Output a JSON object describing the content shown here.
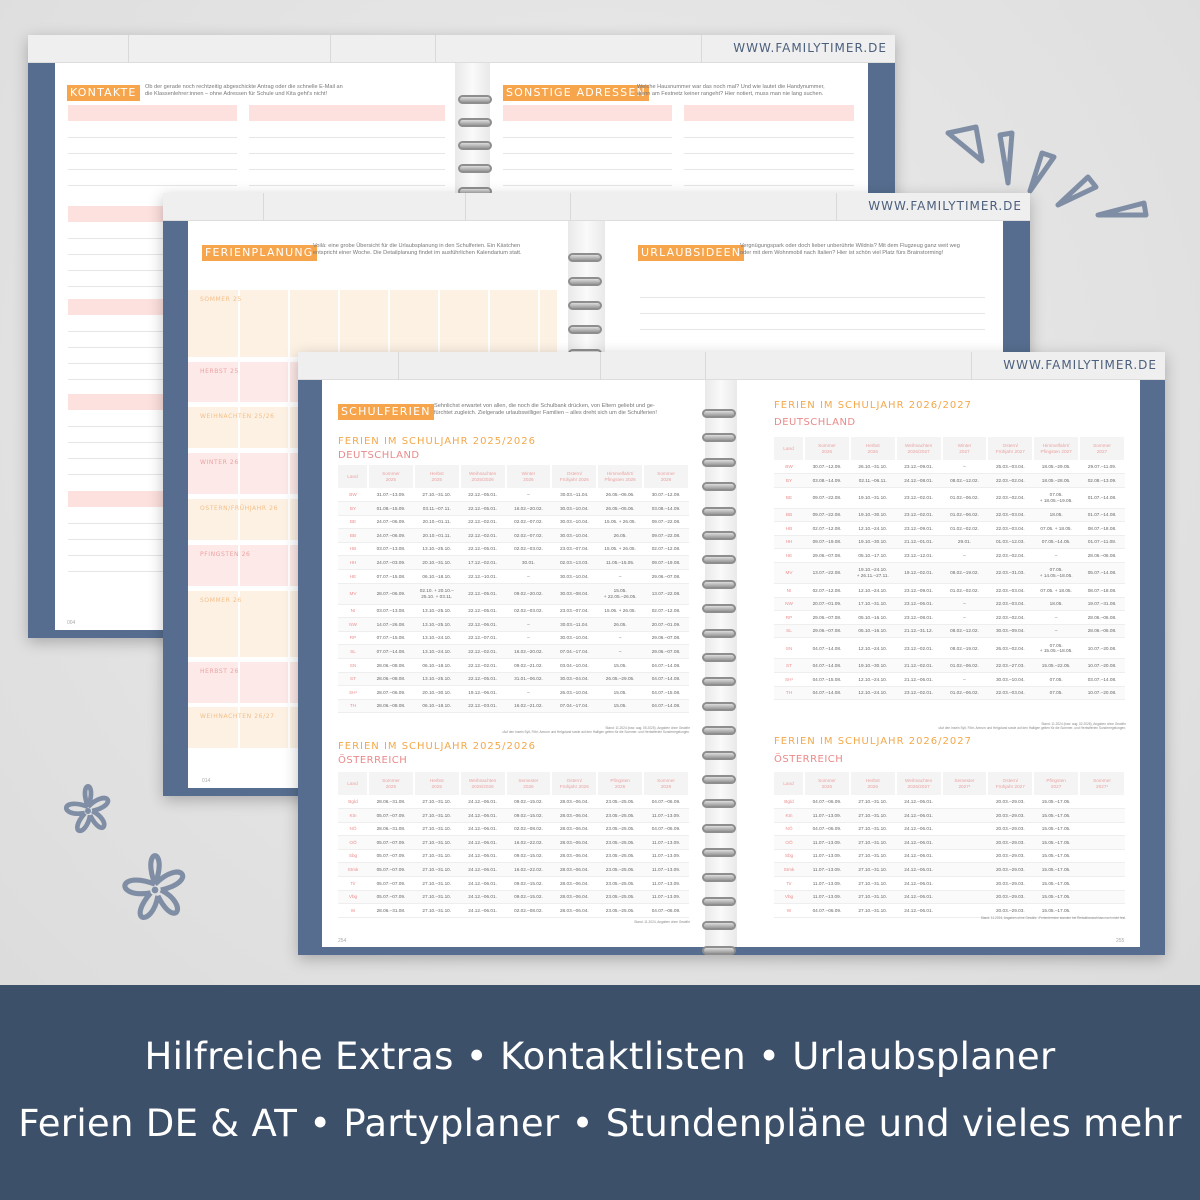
{
  "brand_url": "WWW.FAMILYTIMER.DE",
  "colors": {
    "cover": "#566d8f",
    "accent_orange": "#f6a54c",
    "accent_pink": "#e98a8a",
    "band": "#3d5069"
  },
  "book_kontakte": {
    "left": {
      "heading": "KONTAKTE",
      "description": "Ob der gerade noch rechtzeitig abgeschickte Antrag oder die schnelle E-Mail an\ndie Klassenlehrer:innen – ohne Adressen für Schule und Kita geht's nicht!",
      "page_number": "004"
    },
    "right": {
      "heading": "SONSTIGE ADRESSEN",
      "description": "Welche Hausnummer war das noch mal? Und wie lautet die Handynummer,\nwenn am Festnetz keiner rangeht? Hier notiert, muss man nie lang suchen."
    }
  },
  "book_ferienplanung": {
    "left": {
      "heading": "FERIENPLANUNG",
      "description": "Voilà: eine grobe Übersicht für die Urlaubsplanung in den Schulferien. Ein Kästchen\nentspricht einer Woche. Die Detailplanung findet im ausführlichen Kalendarium statt.",
      "page_number": "014",
      "rows": [
        "SOMMER 25",
        "HERBST 25",
        "WEIHNACHTEN 25/26",
        "WINTER 26",
        "OSTERN/FRÜHJAHR 26",
        "PFINGSTEN 26",
        "SOMMER 26",
        "HERBST 26",
        "WEIHNACHTEN 26/27"
      ]
    },
    "right": {
      "heading": "URLAUBSIDEEN",
      "description": "Vergnügungspark oder doch lieber unberührte Wildnis? Mit dem Flugzeug ganz weit weg\noder mit dem Wohnmobil nach Italien? Hier ist schön viel Platz fürs Brainstorming!"
    }
  },
  "book_schulferien": {
    "heading": "SCHULFERIEN",
    "description": "Sehnlichst erwartet von allen, die noch die Schulbank drücken, von Eltern geliebt und ge-\nfürchtet zugleich. Zielgerade urlaubswilliger Familien – alles dreht sich um die Schulferien!",
    "page_left": "254",
    "page_right": "255",
    "tables": [
      {
        "title": "FERIEN IM SCHULJAHR 2025/2026",
        "subtitle": "DEUTSCHLAND",
        "headers": [
          "Land",
          "Sommer\n2025",
          "Herbst\n2025",
          "Weihnachten\n2025/2026",
          "Winter\n2026",
          "Ostern/\nFrühjahr 2026",
          "Himmelfahrt/\nPfingsten 2026",
          "Sommer\n2026"
        ],
        "rows": [
          [
            "BW",
            "31.07.–13.09.",
            "27.10.–31.10.",
            "22.12.–05.01.",
            "–",
            "30.03.–11.04.",
            "26.05.–06.06.",
            "30.07.–12.09."
          ],
          [
            "BY",
            "01.08.–15.09.",
            "03.11.–07.11.",
            "22.12.–05.01.",
            "16.02.–20.02.",
            "30.03.–10.04.",
            "26.05.–05.06.",
            "03.08.–14.09."
          ],
          [
            "BE",
            "24.07.–06.09.",
            "20.10.–01.11.",
            "22.12.–02.01.",
            "02.02.–07.02.",
            "30.03.–10.04.",
            "15.05. + 26.05.",
            "09.07.–22.08."
          ],
          [
            "BB",
            "24.07.–06.09.",
            "20.10.–01.11.",
            "22.12.–02.01.",
            "02.02.–07.02.",
            "30.03.–10.04.",
            "26.05.",
            "09.07.–22.08."
          ],
          [
            "HB",
            "03.07.–13.08.",
            "13.10.–25.10.",
            "22.12.–05.01.",
            "02.02.–03.02.",
            "23.03.–07.04.",
            "15.05. + 26.05.",
            "02.07.–12.08."
          ],
          [
            "HH",
            "24.07.–03.09.",
            "20.10.–31.10.",
            "17.12.–02.01.",
            "30.01.",
            "02.03.–13.03.",
            "11.05.–15.05.",
            "09.07.–19.08."
          ],
          [
            "HE",
            "07.07.–15.08.",
            "06.10.–18.10.",
            "22.12.–10.01.",
            "–",
            "30.03.–10.04.",
            "–",
            "29.06.–07.08."
          ],
          [
            "MV",
            "28.07.–06.09.",
            "02.10. + 20.10.–\n25.10. + 03.11.",
            "22.12.–05.01.",
            "09.02.–20.02.",
            "30.03.–08.04.",
            "15.05.\n+ 22.05.–26.05.",
            "13.07.–22.08."
          ],
          [
            "NI",
            "03.07.–13.08.",
            "13.10.–25.10.",
            "22.12.–05.01.",
            "02.02.–03.02.",
            "23.03.–07.04.",
            "15.05. + 26.05.",
            "02.07.–12.08."
          ],
          [
            "NW",
            "14.07.–26.08.",
            "13.10.–25.10.",
            "22.12.–06.01.",
            "–",
            "30.03.–11.04.",
            "26.05.",
            "20.07.–01.09."
          ],
          [
            "RP",
            "07.07.–15.08.",
            "13.10.–24.10.",
            "22.12.–07.01.",
            "–",
            "30.03.–10.04.",
            "–",
            "29.06.–07.08."
          ],
          [
            "SL",
            "07.07.–14.08.",
            "13.10.–24.10.",
            "22.12.–02.01.",
            "16.02.–20.02.",
            "07.04.–17.04.",
            "–",
            "29.06.–07.08."
          ],
          [
            "SN",
            "28.06.–08.08.",
            "06.10.–18.10.",
            "22.12.–02.01.",
            "09.02.–21.02.",
            "03.04.–10.04.",
            "15.05.",
            "04.07.–14.08."
          ],
          [
            "ST",
            "28.06.–08.08.",
            "13.10.–25.10.",
            "22.12.–05.01.",
            "31.01.–06.02.",
            "30.03.–04.04.",
            "26.05.–29.05.",
            "04.07.–14.08."
          ],
          [
            "SH¹",
            "28.07.–06.09.",
            "20.10.–30.10.",
            "19.12.–06.01.",
            "–",
            "26.03.–10.04.",
            "15.05.",
            "04.07.–15.08."
          ],
          [
            "TH",
            "28.06.–08.08.",
            "06.10.–18.10.",
            "22.12.–03.01.",
            "16.02.–21.02.",
            "07.04.–17.04.",
            "15.05.",
            "04.07.–14.08."
          ]
        ],
        "note": "Stand: 11.2024 (bzw. aug. 05.2025), Angaben ohne Gewähr\n¹Auf den Inseln Sylt, Föhr, Amrum und Helgoland sowie auf den Halligen gelten für die Sommer- und Herbstferien Sonderregelungen."
      },
      {
        "title": "FERIEN IM SCHULJAHR 2025/2026",
        "subtitle": "ÖSTERREICH",
        "headers": [
          "Land",
          "Sommer\n2025",
          "Herbst\n2025",
          "Weihnachten\n2025/2026",
          "Semester\n2026",
          "Ostern/\nFrühjahr 2026",
          "Pfingsten\n2026",
          "Sommer\n2026"
        ],
        "rows": [
          [
            "Bgld",
            "28.06.–31.08.",
            "27.10.–31.10.",
            "24.12.–06.01.",
            "09.02.–15.02.",
            "28.03.–06.04.",
            "23.05.–25.05.",
            "04.07.–06.09."
          ],
          [
            "Ktn",
            "05.07.–07.09.",
            "27.10.–31.10.",
            "24.12.–06.01.",
            "09.02.–15.02.",
            "28.03.–06.04.",
            "23.05.–25.05.",
            "11.07.–13.09."
          ],
          [
            "NÖ",
            "28.06.–31.08.",
            "27.10.–31.10.",
            "24.12.–06.01.",
            "02.02.–08.02.",
            "28.03.–06.04.",
            "23.05.–25.05.",
            "04.07.–06.09."
          ],
          [
            "OÖ",
            "05.07.–07.09.",
            "27.10.–31.10.",
            "24.12.–06.01.",
            "16.02.–22.02.",
            "28.03.–06.04.",
            "23.05.–25.05.",
            "11.07.–13.09."
          ],
          [
            "Sbg",
            "05.07.–07.09.",
            "27.10.–31.10.",
            "24.12.–06.01.",
            "09.02.–15.02.",
            "28.03.–06.04.",
            "23.05.–25.05.",
            "11.07.–13.09."
          ],
          [
            "Stmk",
            "05.07.–07.09.",
            "27.10.–31.10.",
            "24.12.–06.01.",
            "16.02.–22.02.",
            "28.03.–06.04.",
            "23.05.–25.05.",
            "11.07.–13.09."
          ],
          [
            "Tir",
            "05.07.–07.09.",
            "27.10.–31.10.",
            "24.12.–06.01.",
            "09.02.–15.02.",
            "28.03.–06.04.",
            "23.05.–25.05.",
            "11.07.–13.09."
          ],
          [
            "Vbg",
            "05.07.–07.09.",
            "27.10.–31.10.",
            "24.12.–06.01.",
            "09.02.–15.02.",
            "28.03.–06.04.",
            "23.05.–25.05.",
            "11.07.–13.09."
          ],
          [
            "W",
            "28.06.–31.08.",
            "27.10.–31.10.",
            "24.12.–06.01.",
            "02.02.–08.02.",
            "28.03.–06.04.",
            "23.05.–25.05.",
            "04.07.–06.09."
          ]
        ],
        "note": "Stand: 11.2024, Angaben ohne Gewähr"
      },
      {
        "title": "FERIEN IM SCHULJAHR 2026/2027",
        "subtitle": "DEUTSCHLAND",
        "headers": [
          "Land",
          "Sommer\n2026",
          "Herbst\n2026",
          "Weihnachten\n2026/2027",
          "Winter\n2027",
          "Ostern/\nFrühjahr 2027",
          "Himmelfahrt/\nPfingsten 2027",
          "Sommer\n2027"
        ],
        "rows": [
          [
            "BW",
            "30.07.–12.09.",
            "26.10.–31.10.",
            "23.12.–09.01.",
            "–",
            "25.03.–03.04.",
            "18.05.–29.05.",
            "29.07.–11.09."
          ],
          [
            "BY",
            "03.08.–14.09.",
            "02.11.–06.11.",
            "24.12.–08.01.",
            "08.02.–12.02.",
            "22.03.–02.04.",
            "18.05.–28.05.",
            "02.08.–13.09."
          ],
          [
            "BE",
            "09.07.–22.08.",
            "19.10.–31.10.",
            "23.12.–02.01.",
            "01.02.–06.02.",
            "22.03.–02.04.",
            "07.05.\n+ 18.05.–19.05.",
            "01.07.–14.08."
          ],
          [
            "BB",
            "09.07.–22.08.",
            "19.10.–30.10.",
            "23.12.–02.01.",
            "01.02.–06.02.",
            "22.03.–03.04.",
            "18.05.",
            "01.07.–14.08."
          ],
          [
            "HB",
            "02.07.–12.08.",
            "12.10.–24.10.",
            "23.12.–09.01.",
            "01.02.–02.02.",
            "22.03.–03.04.",
            "07.05. + 18.05.",
            "08.07.–18.08."
          ],
          [
            "HH",
            "09.07.–19.08.",
            "19.10.–30.10.",
            "21.12.–01.01.",
            "29.01.",
            "01.03.–12.03.",
            "07.05.–14.05.",
            "01.07.–11.08."
          ],
          [
            "HE",
            "29.06.–07.08.",
            "05.10.–17.10.",
            "23.12.–12.01.",
            "–",
            "22.03.–02.04.",
            "–",
            "28.06.–06.08."
          ],
          [
            "MV",
            "13.07.–22.08.",
            "19.10.–24.10.\n+ 26.11.–27.11.",
            "19.12.–02.01.",
            "08.02.–19.02.",
            "22.03.–31.03.",
            "07.05.\n+ 14.05.–18.05.",
            "05.07.–14.08."
          ],
          [
            "NI",
            "02.07.–12.08.",
            "12.10.–24.10.",
            "23.12.–09.01.",
            "01.02.–02.02.",
            "22.03.–03.04.",
            "07.05. + 18.05.",
            "08.07.–18.08."
          ],
          [
            "NW",
            "20.07.–01.09.",
            "17.10.–31.10.",
            "23.12.–06.01.",
            "–",
            "22.03.–03.04.",
            "18.05.",
            "19.07.–31.08."
          ],
          [
            "RP",
            "29.06.–07.08.",
            "05.10.–16.10.",
            "23.12.–08.01.",
            "–",
            "22.03.–02.04.",
            "–",
            "28.06.–06.08."
          ],
          [
            "SL",
            "29.06.–07.08.",
            "05.10.–16.10.",
            "21.12.–31.12.",
            "08.02.–12.02.",
            "30.03.–09.04.",
            "–",
            "28.06.–06.08."
          ],
          [
            "SN",
            "04.07.–14.08.",
            "12.10.–24.10.",
            "23.12.–02.01.",
            "08.02.–19.02.",
            "26.03.–02.04.",
            "07.05.\n+ 15.05.–18.05.",
            "10.07.–20.08."
          ],
          [
            "ST",
            "04.07.–14.08.",
            "19.10.–30.10.",
            "21.12.–02.01.",
            "01.02.–06.02.",
            "22.03.–27.03.",
            "15.05.–22.05.",
            "10.07.–20.08."
          ],
          [
            "SH¹",
            "04.07.–15.08.",
            "12.10.–24.10.",
            "21.12.–06.01.",
            "–",
            "30.03.–10.04.",
            "07.05.",
            "03.07.–14.08."
          ],
          [
            "TH",
            "04.07.–14.08.",
            "12.10.–24.10.",
            "23.12.–02.01.",
            "01.02.–06.02.",
            "22.03.–03.04.",
            "07.05.",
            "10.07.–20.08."
          ]
        ],
        "note": "Stand: 11.2024 (bzw. aug. 02.2026), Angaben ohne Gewähr\n¹Auf den Inseln Sylt, Föhr, Amrum und Helgoland sowie auf den Halligen gelten für die Sommer- und Herbstferien Sonderregelungen."
      },
      {
        "title": "FERIEN IM SCHULJAHR 2026/2027",
        "subtitle": "ÖSTERREICH",
        "headers": [
          "Land",
          "Sommer\n2026",
          "Herbst\n2026",
          "Weihnachten\n2026/2027",
          "Semester\n2027¹",
          "Ostern/\nFrühjahr 2027",
          "Pfingsten\n2027",
          "Sommer\n2027¹"
        ],
        "rows": [
          [
            "Bgld",
            "04.07.–06.09.",
            "27.10.–31.10.",
            "24.12.–06.01.",
            "",
            "20.03.–29.03.",
            "15.05.–17.05.",
            ""
          ],
          [
            "Ktn",
            "11.07.–13.09.",
            "27.10.–31.10.",
            "24.12.–06.01.",
            "",
            "20.03.–29.03.",
            "15.05.–17.05.",
            ""
          ],
          [
            "NÖ",
            "04.07.–06.09.",
            "27.10.–31.10.",
            "24.12.–06.01.",
            "",
            "20.03.–29.03.",
            "15.05.–17.05.",
            ""
          ],
          [
            "OÖ",
            "11.07.–13.09.",
            "27.10.–31.10.",
            "24.12.–06.01.",
            "",
            "20.03.–29.03.",
            "15.05.–17.05.",
            ""
          ],
          [
            "Sbg",
            "11.07.–13.09.",
            "27.10.–31.10.",
            "24.12.–06.01.",
            "",
            "20.03.–29.03.",
            "15.05.–17.05.",
            ""
          ],
          [
            "Stmk",
            "11.07.–13.09.",
            "27.10.–31.10.",
            "24.12.–06.01.",
            "",
            "20.03.–29.03.",
            "15.05.–17.05.",
            ""
          ],
          [
            "Tir",
            "11.07.–13.09.",
            "27.10.–31.10.",
            "24.12.–06.01.",
            "",
            "20.03.–29.03.",
            "15.05.–17.05.",
            ""
          ],
          [
            "Vbg",
            "11.07.–13.09.",
            "27.10.–31.10.",
            "24.12.–06.01.",
            "",
            "20.03.–29.03.",
            "15.05.–17.05.",
            ""
          ],
          [
            "W",
            "04.07.–06.09.",
            "27.10.–31.10.",
            "24.12.–06.01.",
            "",
            "20.03.–29.03.",
            "15.05.–17.05.",
            ""
          ]
        ],
        "note": "Stand: 11.2024, Angaben ohne Gewähr. ¹Ferientermine standen bei Redaktionsschluss noch nicht fest."
      }
    ]
  },
  "banner": {
    "line1": "Hilfreiche Extras • Kontaktlisten • Urlaubsplaner",
    "line2": "Ferien DE & AT • Partyplaner • Stundenpläne und vieles mehr"
  },
  "icons": [
    "sparkle-rays-icon",
    "flower-icon"
  ]
}
